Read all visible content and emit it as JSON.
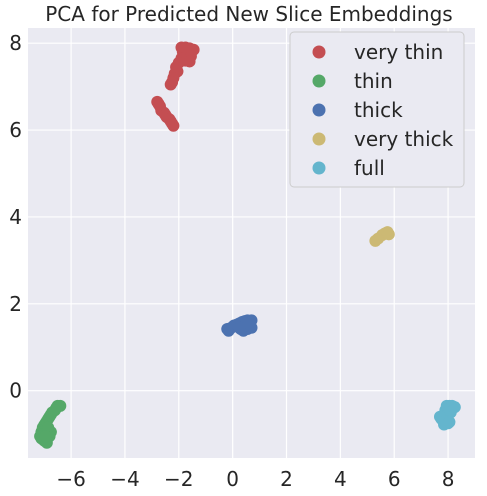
{
  "chart_data": {
    "type": "scatter",
    "title": "PCA for Predicted New Slice Embeddings",
    "xlabel": "",
    "ylabel": "",
    "xlim": [
      -7.6,
      9.0
    ],
    "ylim": [
      -1.55,
      8.35
    ],
    "x_ticks": [
      -6,
      -4,
      -2,
      0,
      2,
      4,
      6,
      8
    ],
    "x_tick_labels": [
      "−6",
      "−4",
      "−2",
      "0",
      "2",
      "4",
      "6",
      "8"
    ],
    "y_ticks": [
      0,
      2,
      4,
      6,
      8
    ],
    "y_tick_labels": [
      "0",
      "2",
      "4",
      "6",
      "8"
    ],
    "grid": true,
    "legend_position": "top-right",
    "series": [
      {
        "name": "very thin",
        "color": "#c44e52",
        "points": [
          [
            -1.9,
            7.9
          ],
          [
            -1.75,
            7.9
          ],
          [
            -1.6,
            7.88
          ],
          [
            -1.45,
            7.85
          ],
          [
            -1.85,
            7.8
          ],
          [
            -1.7,
            7.75
          ],
          [
            -1.55,
            7.7
          ],
          [
            -1.9,
            7.65
          ],
          [
            -1.75,
            7.6
          ],
          [
            -1.6,
            7.58
          ],
          [
            -2.0,
            7.55
          ],
          [
            -2.1,
            7.45
          ],
          [
            -2.05,
            7.35
          ],
          [
            -2.15,
            7.3
          ],
          [
            -2.2,
            7.2
          ],
          [
            -2.25,
            7.1
          ],
          [
            -2.3,
            7.05
          ],
          [
            -2.8,
            6.65
          ],
          [
            -2.75,
            6.6
          ],
          [
            -2.7,
            6.55
          ],
          [
            -2.65,
            6.45
          ],
          [
            -2.55,
            6.4
          ],
          [
            -2.5,
            6.35
          ],
          [
            -2.45,
            6.3
          ],
          [
            -2.35,
            6.25
          ],
          [
            -2.3,
            6.2
          ],
          [
            -2.25,
            6.15
          ],
          [
            -2.2,
            6.1
          ]
        ]
      },
      {
        "name": "thin",
        "color": "#55a868",
        "points": [
          [
            -6.5,
            -0.35
          ],
          [
            -6.4,
            -0.35
          ],
          [
            -6.55,
            -0.4
          ],
          [
            -6.6,
            -0.45
          ],
          [
            -6.7,
            -0.5
          ],
          [
            -6.75,
            -0.55
          ],
          [
            -6.8,
            -0.6
          ],
          [
            -6.85,
            -0.65
          ],
          [
            -6.9,
            -0.7
          ],
          [
            -6.95,
            -0.75
          ],
          [
            -7.0,
            -0.8
          ],
          [
            -7.05,
            -0.85
          ],
          [
            -7.0,
            -0.9
          ],
          [
            -7.1,
            -0.95
          ],
          [
            -7.05,
            -1.0
          ],
          [
            -7.15,
            -1.05
          ],
          [
            -7.1,
            -1.1
          ],
          [
            -7.0,
            -1.15
          ],
          [
            -6.9,
            -1.2
          ],
          [
            -6.8,
            -1.05
          ],
          [
            -6.75,
            -0.95
          ],
          [
            -6.85,
            -0.85
          ],
          [
            -6.95,
            -1.05
          ]
        ]
      },
      {
        "name": "thick",
        "color": "#4c72b0",
        "points": [
          [
            -0.2,
            1.42
          ],
          [
            -0.15,
            1.38
          ],
          [
            -0.05,
            1.45
          ],
          [
            0.05,
            1.5
          ],
          [
            0.15,
            1.52
          ],
          [
            0.25,
            1.55
          ],
          [
            0.35,
            1.58
          ],
          [
            0.45,
            1.6
          ],
          [
            0.55,
            1.62
          ],
          [
            0.7,
            1.62
          ],
          [
            0.3,
            1.42
          ],
          [
            0.4,
            1.38
          ],
          [
            0.55,
            1.42
          ],
          [
            0.7,
            1.45
          ],
          [
            0.45,
            1.5
          ],
          [
            0.6,
            1.55
          ],
          [
            0.25,
            1.45
          ]
        ]
      },
      {
        "name": "very thick",
        "color": "#ccb974",
        "points": [
          [
            5.3,
            3.45
          ],
          [
            5.4,
            3.5
          ],
          [
            5.55,
            3.58
          ],
          [
            5.65,
            3.62
          ],
          [
            5.75,
            3.65
          ],
          [
            5.8,
            3.6
          ]
        ]
      },
      {
        "name": "full",
        "color": "#64b5cd",
        "points": [
          [
            7.95,
            -0.35
          ],
          [
            8.05,
            -0.35
          ],
          [
            8.15,
            -0.35
          ],
          [
            8.25,
            -0.38
          ],
          [
            7.9,
            -0.45
          ],
          [
            8.0,
            -0.5
          ],
          [
            8.1,
            -0.5
          ],
          [
            7.85,
            -0.55
          ],
          [
            7.8,
            -0.6
          ],
          [
            7.75,
            -0.65
          ],
          [
            7.7,
            -0.6
          ],
          [
            7.9,
            -0.7
          ],
          [
            8.0,
            -0.75
          ],
          [
            7.85,
            -0.78
          ],
          [
            8.05,
            -0.72
          ]
        ]
      }
    ]
  }
}
